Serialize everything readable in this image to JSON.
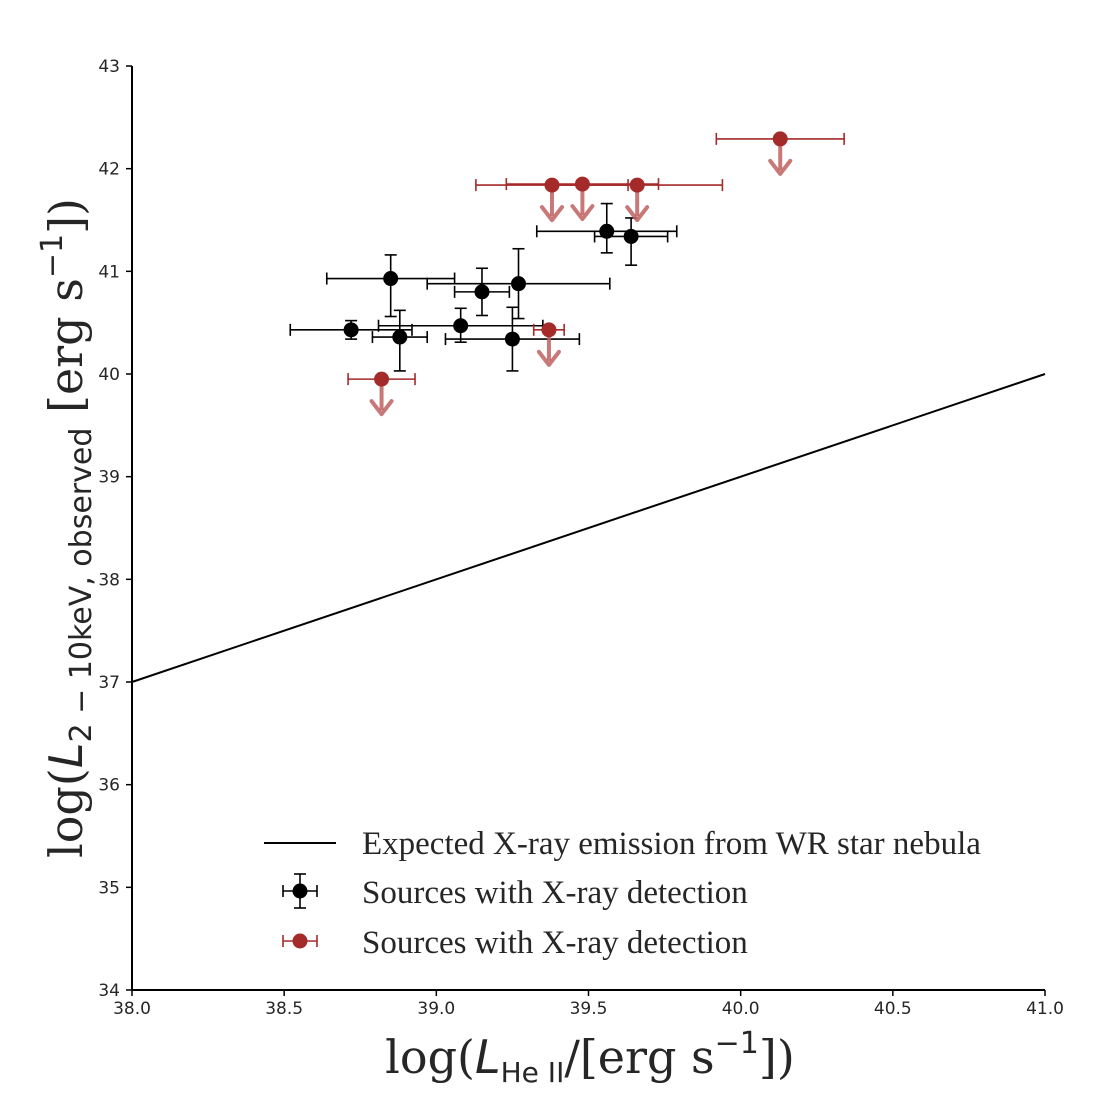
{
  "chart_data": {
    "type": "scatter",
    "xlabel": {
      "prefix": "log(",
      "var": "L",
      "sub": "He II",
      "suffix": "/[erg s",
      "sup": "−1",
      "end": "])"
    },
    "ylabel": {
      "prefix": "log(",
      "var": "L",
      "sub": "2 − 10keV, observed",
      "suffix": " [erg s",
      "sup": "−1",
      "end": "])"
    },
    "xlim": [
      38.0,
      41.0
    ],
    "ylim": [
      34,
      43
    ],
    "xticks": [
      "38.0",
      "38.5",
      "39.0",
      "39.5",
      "40.0",
      "40.5",
      "41.0"
    ],
    "yticks": [
      "34",
      "35",
      "36",
      "37",
      "38",
      "39",
      "40",
      "41",
      "42",
      "43"
    ],
    "grid": false,
    "legend_position": "lower-right",
    "colors": {
      "axis": "#000000",
      "detection": "#000000",
      "upper_limit": "#a52a2a",
      "arrow": "#c06060"
    },
    "series": [
      {
        "name": "Expected X-ray emission from WR star nebula",
        "kind": "line",
        "x": [
          38.0,
          41.0
        ],
        "y": [
          37.0,
          40.0
        ]
      },
      {
        "name": "Sources with X-ray detection",
        "kind": "errorbar",
        "points": [
          {
            "x": 38.72,
            "y": 40.43,
            "xerr": [
              0.2,
              0.2
            ],
            "yerr": [
              0.09,
              0.09
            ]
          },
          {
            "x": 38.85,
            "y": 40.93,
            "xerr": [
              0.21,
              0.21
            ],
            "yerr": [
              0.37,
              0.23
            ]
          },
          {
            "x": 38.88,
            "y": 40.36,
            "xerr": [
              0.09,
              0.09
            ],
            "yerr": [
              0.33,
              0.26
            ]
          },
          {
            "x": 39.08,
            "y": 40.47,
            "xerr": [
              0.27,
              0.27
            ],
            "yerr": [
              0.16,
              0.17
            ]
          },
          {
            "x": 39.15,
            "y": 40.8,
            "xerr": [
              0.09,
              0.09
            ],
            "yerr": [
              0.23,
              0.23
            ]
          },
          {
            "x": 39.25,
            "y": 40.34,
            "xerr": [
              0.22,
              0.22
            ],
            "yerr": [
              0.31,
              0.31
            ]
          },
          {
            "x": 39.27,
            "y": 40.88,
            "xerr": [
              0.3,
              0.3
            ],
            "yerr": [
              0.34,
              0.34
            ]
          },
          {
            "x": 39.56,
            "y": 41.39,
            "xerr": [
              0.23,
              0.23
            ],
            "yerr": [
              0.21,
              0.27
            ]
          },
          {
            "x": 39.64,
            "y": 41.34,
            "xerr": [
              0.12,
              0.12
            ],
            "yerr": [
              0.28,
              0.18
            ]
          }
        ]
      },
      {
        "name": "Sources with X-ray detection",
        "kind": "upper_limit",
        "points": [
          {
            "x": 38.82,
            "y": 39.95,
            "xerr": [
              0.11,
              0.11
            ]
          },
          {
            "x": 39.37,
            "y": 40.43,
            "xerr": [
              0.05,
              0.05
            ]
          },
          {
            "x": 39.38,
            "y": 41.84,
            "xerr": [
              0.25,
              0.25
            ]
          },
          {
            "x": 39.48,
            "y": 41.85,
            "xerr": [
              0.25,
              0.25
            ]
          },
          {
            "x": 39.66,
            "y": 41.84,
            "xerr": [
              0.28,
              0.28
            ]
          },
          {
            "x": 40.13,
            "y": 42.29,
            "xerr": [
              0.21,
              0.21
            ]
          }
        ]
      }
    ]
  }
}
